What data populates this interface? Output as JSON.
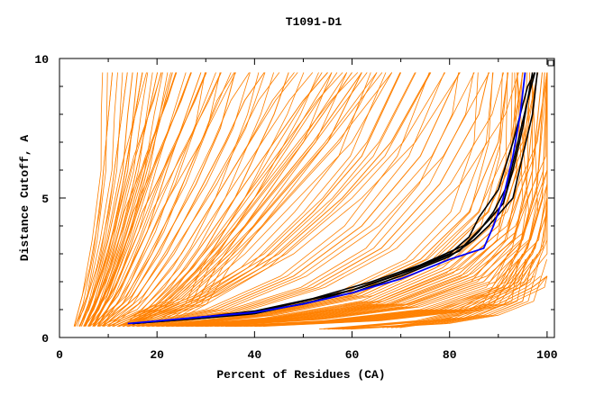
{
  "chart_data": {
    "type": "line",
    "title": "T1091-D1",
    "xlabel": "Percent of Residues (CA)",
    "ylabel": "Distance Cutoff, A",
    "xlim": [
      0,
      101.5
    ],
    "ylim": [
      0,
      10
    ],
    "xticks": [
      0,
      20,
      40,
      60,
      80,
      100
    ],
    "yticks": [
      0,
      5,
      10
    ],
    "grid": false,
    "colors": {
      "others": "#ff8000",
      "highlight": "#0000ff",
      "group": "#000000"
    },
    "series_orange": [
      [
        [
          4,
          0.4
        ],
        [
          6,
          1
        ],
        [
          9,
          2.5
        ],
        [
          12,
          4.5
        ],
        [
          14,
          6.5
        ],
        [
          16,
          8.5
        ],
        [
          17,
          9.5
        ]
      ],
      [
        [
          5,
          0.4
        ],
        [
          7,
          1.2
        ],
        [
          10,
          3
        ],
        [
          13,
          5.5
        ],
        [
          15,
          7.5
        ],
        [
          17,
          9.5
        ]
      ],
      [
        [
          5,
          0.4
        ],
        [
          8,
          1.5
        ],
        [
          11,
          3.5
        ],
        [
          14,
          6
        ],
        [
          16,
          9.5
        ]
      ],
      [
        [
          4.5,
          0.4
        ],
        [
          7,
          1.5
        ],
        [
          10,
          3.5
        ],
        [
          13,
          6
        ],
        [
          14,
          8
        ],
        [
          15,
          9.5
        ]
      ],
      [
        [
          6,
          0.4
        ],
        [
          9,
          1.5
        ],
        [
          13,
          3.5
        ],
        [
          17,
          6
        ],
        [
          21,
          8
        ],
        [
          24,
          9.5
        ]
      ],
      [
        [
          6,
          0.4
        ],
        [
          10,
          1.8
        ],
        [
          15,
          4
        ],
        [
          20,
          6.5
        ],
        [
          25,
          8.5
        ],
        [
          27,
          9.5
        ]
      ],
      [
        [
          7,
          0.4
        ],
        [
          12,
          1.5
        ],
        [
          18,
          3.8
        ],
        [
          22,
          6
        ],
        [
          26,
          8
        ],
        [
          29,
          9.5
        ]
      ],
      [
        [
          7,
          0.4
        ],
        [
          12,
          2
        ],
        [
          17,
          4.5
        ],
        [
          24,
          7
        ],
        [
          30,
          9.5
        ]
      ],
      [
        [
          8,
          0.4
        ],
        [
          14,
          1.2
        ],
        [
          20,
          3
        ],
        [
          28,
          5.5
        ],
        [
          33,
          7.5
        ],
        [
          36,
          9.5
        ]
      ],
      [
        [
          10,
          0.4
        ],
        [
          18,
          1
        ],
        [
          26,
          2.5
        ],
        [
          34,
          4.5
        ],
        [
          42,
          6.5
        ],
        [
          50,
          8.5
        ],
        [
          55,
          9.5
        ]
      ],
      [
        [
          12,
          0.4
        ],
        [
          22,
          1.2
        ],
        [
          30,
          2.5
        ],
        [
          38,
          4
        ],
        [
          46,
          6
        ],
        [
          54,
          8
        ],
        [
          60,
          9.5
        ]
      ],
      [
        [
          12,
          0.4
        ],
        [
          25,
          1.4
        ],
        [
          35,
          3
        ],
        [
          45,
          5
        ],
        [
          55,
          7
        ],
        [
          62,
          9.5
        ]
      ],
      [
        [
          14,
          0.4
        ],
        [
          28,
          1.2
        ],
        [
          40,
          2.5
        ],
        [
          52,
          4.5
        ],
        [
          62,
          6.5
        ],
        [
          70,
          9.5
        ]
      ],
      [
        [
          14,
          0.4
        ],
        [
          30,
          1.5
        ],
        [
          45,
          3
        ],
        [
          58,
          5
        ],
        [
          68,
          7
        ],
        [
          76,
          9.5
        ]
      ],
      [
        [
          16,
          0.4
        ],
        [
          32,
          1
        ],
        [
          48,
          2.2
        ],
        [
          62,
          4
        ],
        [
          74,
          6.5
        ],
        [
          82,
          9.5
        ]
      ],
      [
        [
          18,
          0.4
        ],
        [
          35,
          0.9
        ],
        [
          52,
          1.8
        ],
        [
          66,
          3.2
        ],
        [
          78,
          5.5
        ],
        [
          86,
          8
        ],
        [
          88,
          9.5
        ]
      ],
      [
        [
          20,
          0.4
        ],
        [
          40,
          0.8
        ],
        [
          58,
          1.5
        ],
        [
          74,
          2.8
        ],
        [
          84,
          4.5
        ],
        [
          90,
          7
        ],
        [
          92,
          9.5
        ]
      ],
      [
        [
          22,
          0.4
        ],
        [
          42,
          0.8
        ],
        [
          62,
          1.5
        ],
        [
          78,
          2.8
        ],
        [
          88,
          4.5
        ],
        [
          93,
          7
        ],
        [
          95,
          9.5
        ]
      ],
      [
        [
          24,
          0.4
        ],
        [
          44,
          0.7
        ],
        [
          64,
          1.3
        ],
        [
          80,
          2.5
        ],
        [
          90,
          4
        ],
        [
          95,
          6.5
        ],
        [
          97,
          9.5
        ]
      ],
      [
        [
          26,
          0.4
        ],
        [
          46,
          0.7
        ],
        [
          66,
          1.2
        ],
        [
          82,
          2.3
        ],
        [
          92,
          3.8
        ],
        [
          96,
          6
        ],
        [
          98,
          9.5
        ]
      ],
      [
        [
          28,
          0.4
        ],
        [
          50,
          0.7
        ],
        [
          70,
          1.2
        ],
        [
          85,
          2.2
        ],
        [
          93,
          3.5
        ],
        [
          97,
          6
        ],
        [
          99,
          9.5
        ]
      ],
      [
        [
          30,
          0.4
        ],
        [
          52,
          0.65
        ],
        [
          72,
          1.1
        ],
        [
          87,
          2
        ],
        [
          95,
          3.5
        ],
        [
          98,
          5.5
        ],
        [
          99.5,
          9.5
        ]
      ],
      [
        [
          34,
          0.4
        ],
        [
          56,
          0.6
        ],
        [
          76,
          1
        ],
        [
          90,
          1.8
        ],
        [
          96,
          3.2
        ],
        [
          99,
          5
        ],
        [
          100,
          9.5
        ]
      ],
      [
        [
          36,
          0.4
        ],
        [
          60,
          0.6
        ],
        [
          80,
          1
        ],
        [
          92,
          1.8
        ],
        [
          97,
          3
        ],
        [
          100,
          4.5
        ],
        [
          100,
          9.5
        ]
      ],
      [
        [
          40,
          0.4
        ],
        [
          64,
          0.6
        ],
        [
          84,
          1
        ],
        [
          94,
          2
        ],
        [
          98,
          3.5
        ],
        [
          100,
          5
        ]
      ],
      [
        [
          55,
          0.3
        ],
        [
          75,
          0.6
        ],
        [
          90,
          1.2
        ],
        [
          97,
          1.8
        ],
        [
          100,
          2.2
        ]
      ],
      [
        [
          68,
          0.35
        ],
        [
          82,
          0.7
        ],
        [
          89,
          1.2
        ],
        [
          92,
          2
        ],
        [
          95,
          3
        ]
      ],
      [
        [
          58,
          0.3
        ],
        [
          78,
          0.5
        ],
        [
          88,
          0.8
        ],
        [
          95,
          1.3
        ],
        [
          97,
          2.8
        ]
      ],
      [
        [
          20,
          0.4
        ],
        [
          28,
          1.2
        ],
        [
          32,
          2.5
        ],
        [
          38,
          4
        ],
        [
          45,
          5.5
        ],
        [
          52,
          7
        ],
        [
          58,
          8.5
        ],
        [
          62,
          9.5
        ]
      ],
      [
        [
          9,
          0.4
        ],
        [
          16,
          1.5
        ],
        [
          22,
          3
        ],
        [
          28,
          5
        ],
        [
          34,
          7
        ],
        [
          38,
          8.5
        ],
        [
          42,
          9.5
        ]
      ],
      [
        [
          15,
          0.4
        ],
        [
          24,
          1.8
        ],
        [
          30,
          3.2
        ],
        [
          36,
          5
        ],
        [
          40,
          6.5
        ],
        [
          44,
          8
        ],
        [
          47,
          9.5
        ]
      ]
    ],
    "series_highlight": [
      [
        14,
        0.5
      ],
      [
        30,
        0.75
      ],
      [
        40,
        0.9
      ],
      [
        50,
        1.2
      ],
      [
        60,
        1.6
      ],
      [
        70,
        2.1
      ],
      [
        80,
        2.8
      ],
      [
        87,
        3.2
      ],
      [
        89,
        4
      ],
      [
        91,
        5
      ],
      [
        93,
        6.5
      ],
      [
        94.5,
        8
      ],
      [
        95.5,
        9.5
      ]
    ],
    "series_group": [
      [
        [
          15,
          0.5
        ],
        [
          30,
          0.7
        ],
        [
          40,
          0.85
        ],
        [
          52,
          1.3
        ],
        [
          62,
          1.8
        ],
        [
          72,
          2.4
        ],
        [
          82,
          3.1
        ],
        [
          86,
          3.8
        ],
        [
          89,
          4.5
        ],
        [
          92,
          5.5
        ],
        [
          94,
          7
        ],
        [
          96,
          8.5
        ],
        [
          97.5,
          9.5
        ]
      ],
      [
        [
          15,
          0.5
        ],
        [
          30,
          0.75
        ],
        [
          40,
          0.95
        ],
        [
          52,
          1.4
        ],
        [
          64,
          2
        ],
        [
          74,
          2.6
        ],
        [
          83,
          3.3
        ],
        [
          88,
          4.2
        ],
        [
          91,
          4.8
        ],
        [
          93,
          6
        ],
        [
          95,
          7.5
        ],
        [
          97,
          9.5
        ]
      ],
      [
        [
          15,
          0.5
        ],
        [
          30,
          0.7
        ],
        [
          40,
          0.9
        ],
        [
          50,
          1.2
        ],
        [
          60,
          1.6
        ],
        [
          70,
          2.2
        ],
        [
          80,
          2.9
        ],
        [
          85,
          3.5
        ],
        [
          88,
          4
        ],
        [
          93,
          5
        ],
        [
          95,
          6.5
        ],
        [
          97,
          8
        ],
        [
          98,
          9.5
        ]
      ],
      [
        [
          15,
          0.5
        ],
        [
          30,
          0.75
        ],
        [
          40,
          0.9
        ],
        [
          50,
          1.3
        ],
        [
          60,
          1.7
        ],
        [
          70,
          2.3
        ],
        [
          80,
          3
        ],
        [
          84,
          3.6
        ],
        [
          86,
          4.3
        ],
        [
          90,
          5.3
        ],
        [
          93,
          7
        ],
        [
          96,
          9
        ],
        [
          97.5,
          9.5
        ]
      ]
    ]
  }
}
